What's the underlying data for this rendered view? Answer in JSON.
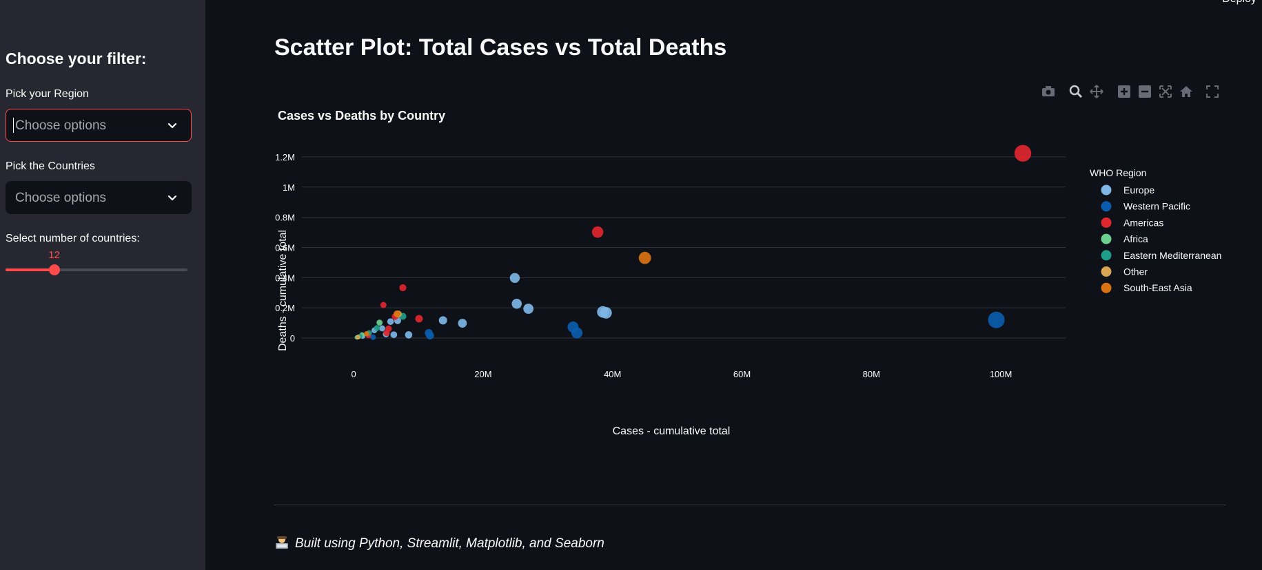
{
  "sidebar": {
    "heading": "Choose your filter:",
    "region_label": "Pick your Region",
    "region_placeholder": "Choose options",
    "countries_label": "Pick the Countries",
    "countries_placeholder": "Choose options",
    "slider_label": "Select number of countries:",
    "slider_value": "12",
    "slider_fraction": 0.27
  },
  "header": {
    "deploy_label": "Deploy"
  },
  "main": {
    "title": "Scatter Plot: Total Cases vs Total Deaths",
    "footer_text": "Built using Python, Streamlit, Matplotlib, and Seaborn",
    "toolbar_icons": [
      "camera-icon",
      "zoom-icon",
      "pan-icon",
      "zoom-in-icon",
      "zoom-out-icon",
      "autoscale-icon",
      "reset-axes-icon",
      "fullscreen-icon"
    ]
  },
  "colors": {
    "accent": "#ff4b4b",
    "Europe": "#7eb6e6",
    "Western Pacific": "#0b5cad",
    "Americas": "#e0262e",
    "Africa": "#6dcf8f",
    "Eastern Mediterranean": "#1f9e89",
    "Other": "#d9a552",
    "South-East Asia": "#d97312"
  },
  "chart_data": {
    "type": "scatter",
    "title": "Cases vs Deaths by Country",
    "xlabel": "Cases - cumulative total",
    "ylabel": "Deaths - cumulative total",
    "xlim": [
      -8000000,
      110000000
    ],
    "ylim": [
      -50000,
      1300000
    ],
    "x_ticks": [
      0,
      20000000,
      40000000,
      60000000,
      80000000,
      100000000
    ],
    "x_tick_labels": [
      "0",
      "20M",
      "40M",
      "60M",
      "80M",
      "100M"
    ],
    "y_ticks": [
      0,
      200000,
      400000,
      600000,
      800000,
      1000000,
      1200000
    ],
    "y_tick_labels": [
      "0",
      "0.2M",
      "0.4M",
      "0.6M",
      "0.8M",
      "1M",
      "1.2M"
    ],
    "legend_title": "WHO Region",
    "legend_position": "right",
    "grid": "horizontal",
    "series": [
      {
        "name": "Europe",
        "points": [
          [
            24900000,
            398000
          ],
          [
            25200000,
            227000
          ],
          [
            27000000,
            194000
          ],
          [
            38500000,
            173000
          ],
          [
            39000000,
            167000
          ],
          [
            16800000,
            98000
          ],
          [
            13800000,
            117000
          ],
          [
            8500000,
            21000
          ],
          [
            6800000,
            115000
          ],
          [
            5700000,
            109000
          ],
          [
            4400000,
            64000
          ],
          [
            3200000,
            51000
          ],
          [
            2200000,
            23000
          ],
          [
            5000000,
            26000
          ],
          [
            6200000,
            22000
          ],
          [
            1400000,
            11000
          ]
        ]
      },
      {
        "name": "Western Pacific",
        "points": [
          [
            99300000,
            120000
          ],
          [
            33900000,
            73000
          ],
          [
            34500000,
            34000
          ],
          [
            11600000,
            34000
          ],
          [
            11800000,
            17000
          ],
          [
            3000000,
            6000
          ]
        ]
      },
      {
        "name": "Americas",
        "points": [
          [
            103400000,
            1224000
          ],
          [
            37700000,
            702000
          ],
          [
            7600000,
            333000
          ],
          [
            4600000,
            219000
          ],
          [
            10100000,
            128000
          ],
          [
            6400000,
            142000
          ],
          [
            5400000,
            62000
          ],
          [
            5100000,
            34000
          ],
          [
            2300000,
            16000
          ]
        ]
      },
      {
        "name": "Africa",
        "points": [
          [
            4000000,
            102000
          ],
          [
            1300000,
            22000
          ],
          [
            700000,
            8000
          ],
          [
            500000,
            4000
          ]
        ]
      },
      {
        "name": "Eastern Mediterranean",
        "points": [
          [
            7600000,
            144000
          ],
          [
            3600000,
            66000
          ],
          [
            2400000,
            34000
          ],
          [
            1000000,
            12000
          ]
        ]
      },
      {
        "name": "Other",
        "points": [
          [
            6900000,
            159000
          ],
          [
            700000,
            6000
          ]
        ]
      },
      {
        "name": "South-East Asia",
        "points": [
          [
            45000000,
            531000
          ],
          [
            6700000,
            160000
          ],
          [
            2000000,
            29000
          ]
        ]
      }
    ]
  }
}
